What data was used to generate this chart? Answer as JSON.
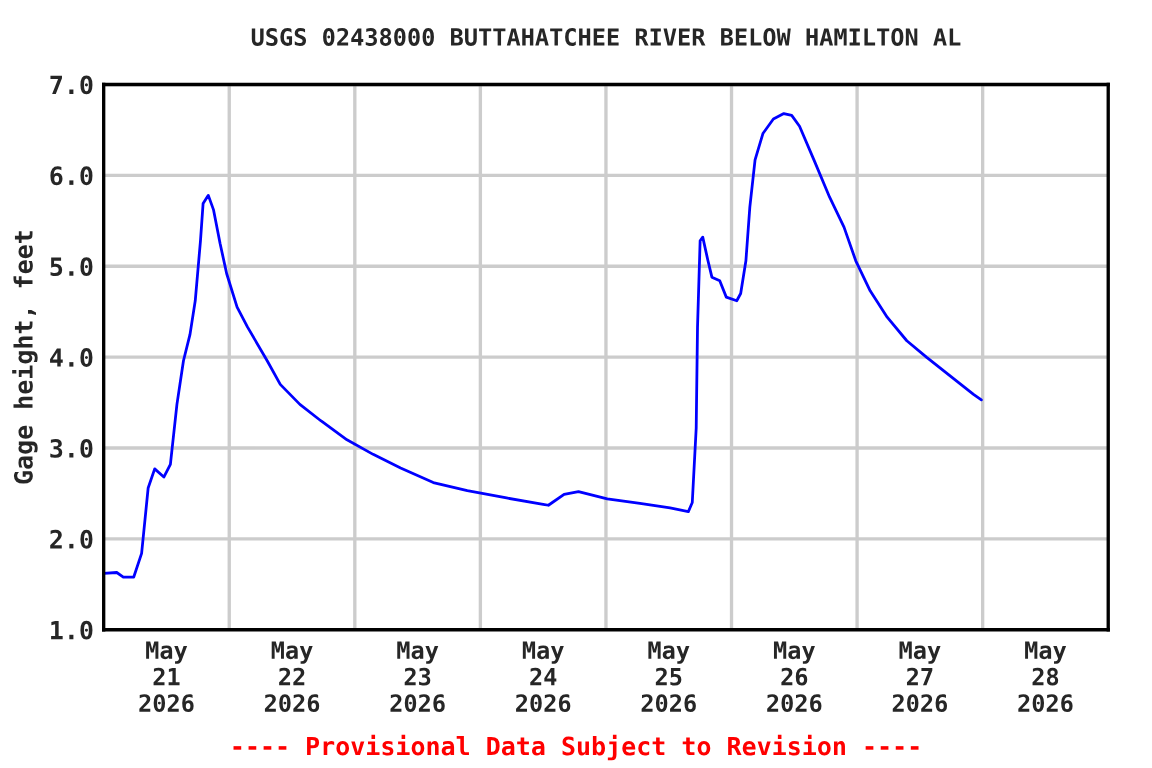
{
  "chart_data": {
    "type": "line",
    "title": "USGS 02438000 BUTTAHATCHEE RIVER BELOW HAMILTON AL",
    "ylabel": "Gage height, feet",
    "annotations": [
      "---- Provisional Data Subject to Revision ----"
    ],
    "x": [
      "2026-05-21T00:00",
      "2026-05-21T02:30",
      "2026-05-21T03:45",
      "2026-05-21T05:45",
      "2026-05-21T07:15",
      "2026-05-21T08:30",
      "2026-05-21T09:45",
      "2026-05-21T11:30",
      "2026-05-21T12:45",
      "2026-05-21T14:00",
      "2026-05-21T15:15",
      "2026-05-21T16:30",
      "2026-05-21T17:30",
      "2026-05-21T18:30",
      "2026-05-21T19:00",
      "2026-05-21T20:00",
      "2026-05-21T21:00",
      "2026-05-21T22:15",
      "2026-05-21T23:30",
      "2026-05-22T01:30",
      "2026-05-22T03:30",
      "2026-05-22T07:15",
      "2026-05-22T09:45",
      "2026-05-22T13:30",
      "2026-05-22T17:30",
      "2026-05-22T22:30",
      "2026-05-23T03:30",
      "2026-05-23T08:45",
      "2026-05-23T15:00",
      "2026-05-23T21:30",
      "2026-05-24T05:00",
      "2026-05-24T12:00",
      "2026-05-24T13:00",
      "2026-05-24T16:00",
      "2026-05-24T18:45",
      "2026-05-25T00:15",
      "2026-05-25T06:30",
      "2026-05-25T12:15",
      "2026-05-25T15:45",
      "2026-05-25T16:30",
      "2026-05-25T17:15",
      "2026-05-25T17:30",
      "2026-05-25T18:00",
      "2026-05-25T18:30",
      "2026-05-25T19:30",
      "2026-05-25T20:15",
      "2026-05-25T21:45",
      "2026-05-25T23:00",
      "2026-05-26T01:00",
      "2026-05-26T01:45",
      "2026-05-26T02:45",
      "2026-05-26T03:30",
      "2026-05-26T04:30",
      "2026-05-26T06:00",
      "2026-05-26T08:00",
      "2026-05-26T10:00",
      "2026-05-26T11:30",
      "2026-05-26T13:00",
      "2026-05-26T15:45",
      "2026-05-26T18:45",
      "2026-05-26T21:30",
      "2026-05-26T23:45",
      "2026-05-27T02:30",
      "2026-05-27T05:45",
      "2026-05-27T09:30",
      "2026-05-27T13:15",
      "2026-05-27T18:30",
      "2026-05-27T22:15",
      "2026-05-27T23:45"
    ],
    "series": [
      {
        "color": "#0000ff",
        "values": [
          1.62,
          1.63,
          1.58,
          1.58,
          1.84,
          2.56,
          2.77,
          2.68,
          2.82,
          3.48,
          3.96,
          4.25,
          4.62,
          5.28,
          5.69,
          5.78,
          5.62,
          5.25,
          4.92,
          4.55,
          4.33,
          3.96,
          3.7,
          3.48,
          3.3,
          3.09,
          2.93,
          2.78,
          2.62,
          2.53,
          2.45,
          2.38,
          2.37,
          2.49,
          2.52,
          2.44,
          2.39,
          2.34,
          2.3,
          2.4,
          3.22,
          4.33,
          5.28,
          5.32,
          5.06,
          4.88,
          4.84,
          4.66,
          4.62,
          4.7,
          5.06,
          5.65,
          6.17,
          6.46,
          6.62,
          6.68,
          6.66,
          6.54,
          6.17,
          5.76,
          5.43,
          5.06,
          4.73,
          4.44,
          4.18,
          4.0,
          3.76,
          3.59,
          3.53
        ]
      }
    ],
    "xlim": [
      "2026-05-21T00:00",
      "2026-05-29T00:00"
    ],
    "xticks": [
      {
        "value": "2026-05-22T00:00",
        "label": null
      },
      {
        "value": "2026-05-23T00:00",
        "label": null
      },
      {
        "value": "2026-05-24T00:00",
        "label": null
      },
      {
        "value": "2026-05-25T00:00",
        "label": null
      },
      {
        "value": "2026-05-26T00:00",
        "label": null
      },
      {
        "value": "2026-05-27T00:00",
        "label": null
      },
      {
        "value": "2026-05-28T00:00",
        "label": null
      },
      {
        "value": "2026-05-21T12:00",
        "label": "May\n21\n2026"
      },
      {
        "value": "2026-05-22T12:00",
        "label": "May\n22\n2026"
      },
      {
        "value": "2026-05-23T12:00",
        "label": "May\n23\n2026"
      },
      {
        "value": "2026-05-24T12:00",
        "label": "May\n24\n2026"
      },
      {
        "value": "2026-05-25T12:00",
        "label": "May\n25\n2026"
      },
      {
        "value": "2026-05-26T12:00",
        "label": "May\n26\n2026"
      },
      {
        "value": "2026-05-27T12:00",
        "label": "May\n27\n2026"
      },
      {
        "value": "2026-05-28T12:00",
        "label": "May\n28\n2026"
      }
    ],
    "ylim": [
      1,
      7
    ],
    "yticks": [
      {
        "value": 1,
        "label": "1.0"
      },
      {
        "value": 2,
        "label": "2.0"
      },
      {
        "value": 3,
        "label": "3.0"
      },
      {
        "value": 4,
        "label": "4.0"
      },
      {
        "value": 5,
        "label": "5.0"
      },
      {
        "value": 6,
        "label": "6.0"
      },
      {
        "value": 7,
        "label": "7.0"
      }
    ],
    "grid": true,
    "marker": "none",
    "line_style": "solid"
  }
}
